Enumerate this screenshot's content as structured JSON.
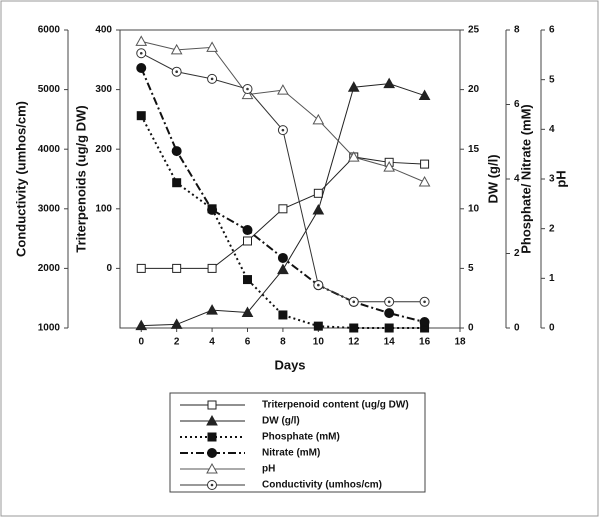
{
  "chart_data": {
    "type": "line",
    "xlabel": "Days",
    "x": [
      0,
      2,
      4,
      6,
      8,
      10,
      12,
      14,
      16
    ],
    "xlim": [
      -1.2,
      18
    ],
    "xticks": [
      0,
      2,
      4,
      6,
      8,
      10,
      12,
      14,
      16,
      18
    ],
    "ylabel": "Triterpenoids (ug/g DW)",
    "ylim": [
      -100,
      400
    ],
    "yticks": [
      0,
      100,
      200,
      300,
      400
    ],
    "y2label": "Conductivity (umhos/cm)",
    "y2lim": [
      1000,
      6000
    ],
    "y2ticks": [
      1000,
      2000,
      3000,
      4000,
      5000,
      6000
    ],
    "y3label": "DW (g/l)",
    "y3lim": [
      0,
      25
    ],
    "y3ticks": [
      0,
      5,
      10,
      15,
      20,
      25
    ],
    "y4label": "Phosphate/ Nitrate (mM)",
    "y4lim": [
      0,
      8
    ],
    "y4ticks": [
      0,
      2,
      4,
      6,
      8
    ],
    "y5label": "pH",
    "y5lim": [
      0,
      6
    ],
    "y5ticks": [
      0,
      1,
      2,
      3,
      4,
      5,
      6
    ],
    "grid": false,
    "series": [
      {
        "name": "Triterpenoid content (ug/g DW)",
        "color": "#222222",
        "axis": "y",
        "marker": "square-open",
        "dash": "solid",
        "values": [
          0,
          0,
          0,
          46,
          100,
          126,
          187,
          178,
          175
        ]
      },
      {
        "name": "DW (g/l)",
        "color": "#222222",
        "axis": "y3",
        "marker": "triangle-filled",
        "dash": "solid",
        "values": [
          0.2,
          0.3,
          1.5,
          1.3,
          4.9,
          9.9,
          20.2,
          20.5,
          19.5
        ]
      },
      {
        "name": "Phosphate (mM)",
        "color": "#111111",
        "axis": "y4",
        "marker": "square-filled",
        "dash": "dotted",
        "values": [
          5.7,
          3.9,
          3.2,
          1.3,
          0.35,
          0.05,
          0,
          0,
          0
        ]
      },
      {
        "name": "Nitrate (mM)",
        "color": "#111111",
        "axis": "y4",
        "marker": "circle-filled",
        "dash": "dashdot",
        "values": [
          6.98,
          4.75,
          3.17,
          2.63,
          1.88,
          1.15,
          0.7,
          0.4,
          0.16
        ]
      },
      {
        "name": "pH",
        "color": "#555555",
        "axis": "y5",
        "marker": "triangle-open",
        "dash": "solid",
        "values": [
          5.77,
          5.6,
          5.65,
          4.7,
          4.79,
          4.19,
          3.44,
          3.24,
          2.94
        ]
      },
      {
        "name": "Conductivity (umhos/cm)",
        "color": "#333333",
        "axis": "y2",
        "marker": "circle-dot",
        "dash": "solid",
        "values": [
          5610,
          5300,
          5180,
          5010,
          4320,
          1720,
          1440,
          1440,
          1440
        ]
      }
    ]
  }
}
